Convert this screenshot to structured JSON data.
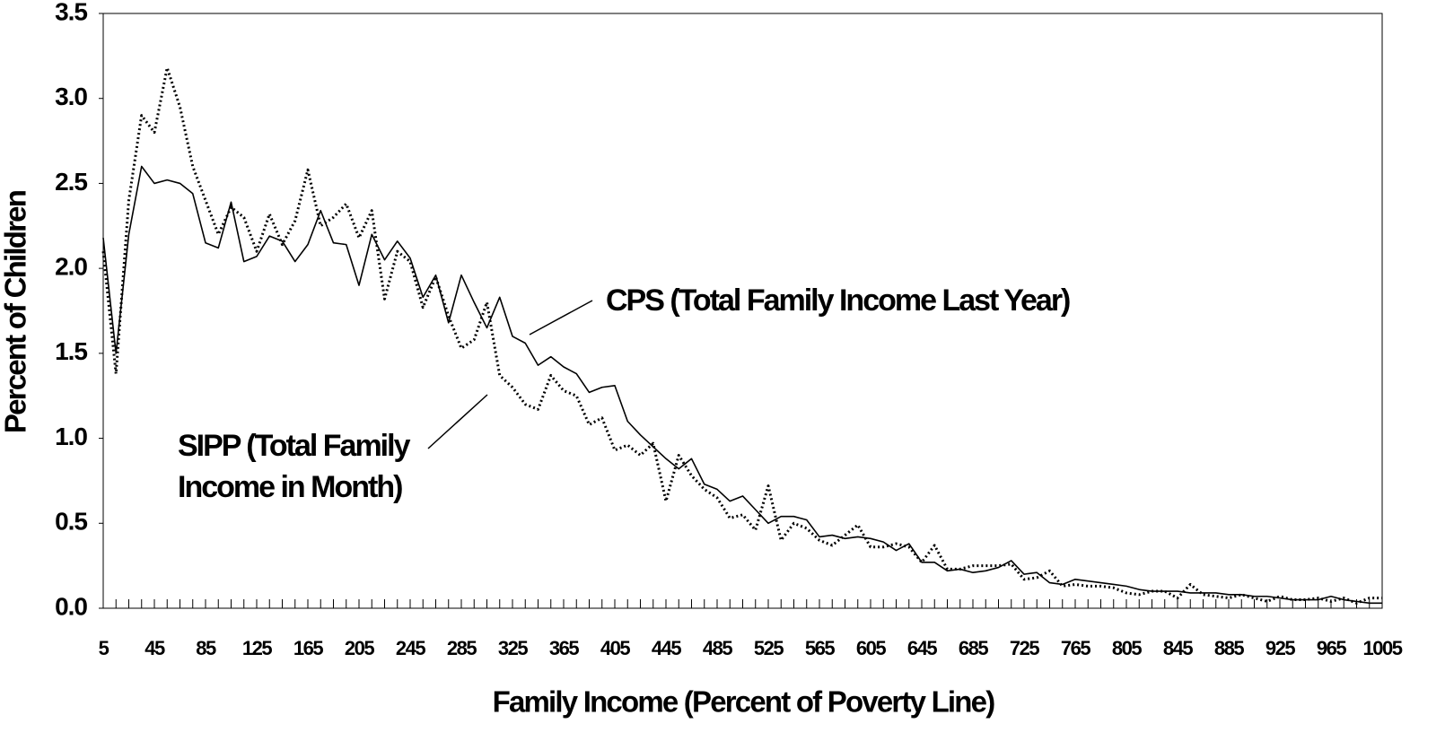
{
  "chart_data": {
    "type": "line",
    "xlabel": "Family Income (Percent of Poverty Line)",
    "ylabel": "Percent of Children",
    "x": [
      5,
      15,
      25,
      35,
      45,
      55,
      65,
      75,
      85,
      95,
      105,
      115,
      125,
      135,
      145,
      155,
      165,
      175,
      185,
      195,
      205,
      215,
      225,
      235,
      245,
      255,
      265,
      275,
      285,
      295,
      305,
      315,
      325,
      335,
      345,
      355,
      365,
      375,
      385,
      395,
      405,
      415,
      425,
      435,
      445,
      455,
      465,
      475,
      485,
      495,
      505,
      515,
      525,
      535,
      545,
      555,
      565,
      575,
      585,
      595,
      605,
      615,
      625,
      635,
      645,
      655,
      665,
      675,
      685,
      695,
      705,
      715,
      725,
      735,
      745,
      755,
      765,
      775,
      785,
      795,
      805,
      815,
      825,
      835,
      845,
      855,
      865,
      875,
      885,
      895,
      905,
      915,
      925,
      935,
      945,
      955,
      965,
      975,
      985,
      995,
      1005
    ],
    "xlim": [
      5,
      1005
    ],
    "xticks": [
      5,
      45,
      85,
      125,
      165,
      205,
      245,
      285,
      325,
      365,
      405,
      445,
      485,
      525,
      565,
      605,
      645,
      685,
      725,
      765,
      805,
      845,
      885,
      925,
      965,
      1005
    ],
    "ylim": [
      0,
      3.5
    ],
    "yticks": [
      {
        "value": 0,
        "label": "0.0"
      },
      0.5,
      {
        "value": 1,
        "label": "1.0"
      },
      1.5,
      {
        "value": 2,
        "label": "2.0"
      },
      2.5,
      {
        "value": 3,
        "label": "3.0"
      },
      3.5
    ],
    "series": [
      {
        "name": "CPS (Total Family Income Last Year)",
        "color": "#000000",
        "dash": "solid",
        "values": [
          2.18,
          1.5,
          2.2,
          2.6,
          2.5,
          2.52,
          2.5,
          2.44,
          2.15,
          2.12,
          2.39,
          2.04,
          2.07,
          2.19,
          2.16,
          2.04,
          2.14,
          2.34,
          2.15,
          2.14,
          1.9,
          2.2,
          2.05,
          2.16,
          2.06,
          1.83,
          1.96,
          1.68,
          1.96,
          1.8,
          1.65,
          1.83,
          1.6,
          1.56,
          1.43,
          1.48,
          1.42,
          1.38,
          1.27,
          1.3,
          1.31,
          1.1,
          1.02,
          0.95,
          0.88,
          0.82,
          0.88,
          0.73,
          0.7,
          0.63,
          0.66,
          0.58,
          0.5,
          0.54,
          0.54,
          0.52,
          0.42,
          0.43,
          0.41,
          0.42,
          0.41,
          0.39,
          0.34,
          0.38,
          0.27,
          0.27,
          0.22,
          0.23,
          0.21,
          0.22,
          0.24,
          0.28,
          0.2,
          0.21,
          0.15,
          0.14,
          0.17,
          0.16,
          0.15,
          0.14,
          0.13,
          0.11,
          0.1,
          0.1,
          0.1,
          0.09,
          0.09,
          0.09,
          0.08,
          0.08,
          0.07,
          0.07,
          0.06,
          0.05,
          0.05,
          0.05,
          0.07,
          0.05,
          0.04,
          0.03,
          0.03
        ]
      },
      {
        "name": "SIPP (Total Family Income in Month)",
        "color": "#000000",
        "dash": "dotted",
        "values": [
          2.1,
          1.38,
          2.4,
          2.9,
          2.8,
          3.18,
          2.95,
          2.6,
          2.4,
          2.2,
          2.36,
          2.3,
          2.1,
          2.32,
          2.14,
          2.28,
          2.58,
          2.25,
          2.3,
          2.38,
          2.18,
          2.34,
          1.82,
          2.1,
          2.04,
          1.77,
          1.95,
          1.72,
          1.53,
          1.58,
          1.8,
          1.37,
          1.3,
          1.2,
          1.17,
          1.37,
          1.28,
          1.25,
          1.08,
          1.12,
          0.93,
          0.96,
          0.9,
          0.97,
          0.63,
          0.9,
          0.78,
          0.7,
          0.65,
          0.53,
          0.55,
          0.46,
          0.72,
          0.4,
          0.5,
          0.47,
          0.4,
          0.37,
          0.43,
          0.49,
          0.36,
          0.36,
          0.38,
          0.36,
          0.27,
          0.37,
          0.23,
          0.23,
          0.25,
          0.25,
          0.25,
          0.26,
          0.17,
          0.18,
          0.22,
          0.13,
          0.14,
          0.13,
          0.13,
          0.12,
          0.09,
          0.08,
          0.1,
          0.1,
          0.06,
          0.14,
          0.08,
          0.07,
          0.06,
          0.08,
          0.06,
          0.04,
          0.07,
          0.05,
          0.05,
          0.06,
          0.04,
          0.06,
          0.03,
          0.06,
          0.06
        ]
      }
    ]
  }
}
